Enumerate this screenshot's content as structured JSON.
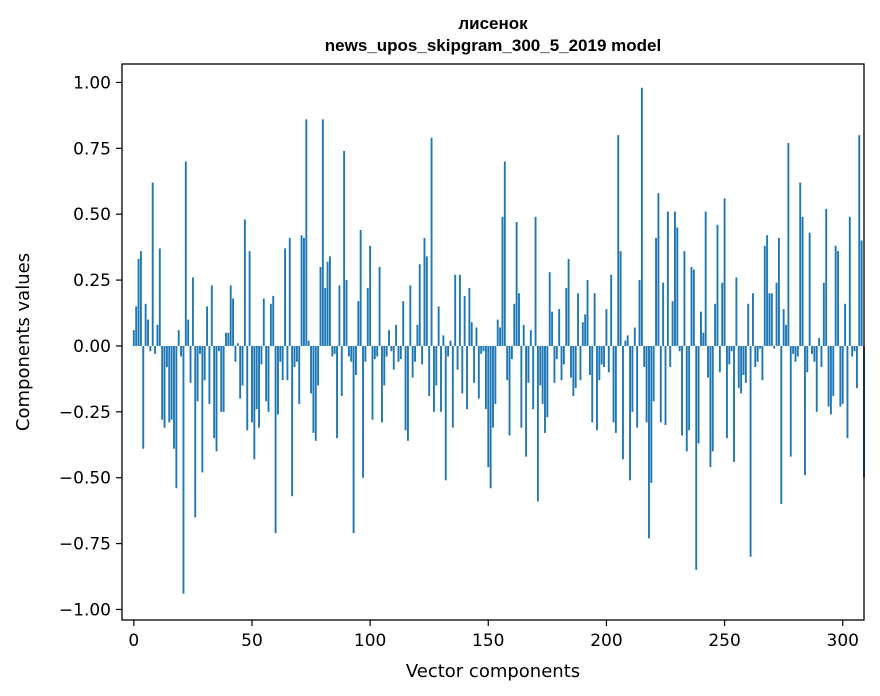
{
  "chart_data": {
    "type": "bar",
    "title": "лисенок",
    "subtitle": "news_upos_skipgram_300_5_2019 model",
    "xlabel": "Vector components",
    "ylabel": "Components values",
    "xlim": [
      -5,
      309
    ],
    "ylim": [
      -1.04,
      1.07
    ],
    "x_ticks": [
      0,
      50,
      100,
      150,
      200,
      250,
      300
    ],
    "x_tick_labels": [
      "0",
      "50",
      "100",
      "150",
      "200",
      "250",
      "300"
    ],
    "y_ticks": [
      1.0,
      0.75,
      0.5,
      0.25,
      0.0,
      -0.25,
      -0.5,
      -0.75,
      -1.0
    ],
    "y_tick_labels": [
      "1.00",
      "0.75",
      "0.50",
      "0.25",
      "0.00",
      "−0.25",
      "−0.50",
      "−0.75",
      "−1.00"
    ],
    "grid": false,
    "bar_color": "#1f77b4",
    "values": [
      0.06,
      0.15,
      0.33,
      0.36,
      -0.39,
      0.16,
      0.1,
      -0.02,
      0.62,
      -0.03,
      0.08,
      0.37,
      -0.28,
      -0.31,
      -0.08,
      -0.29,
      -0.28,
      -0.39,
      -0.54,
      0.06,
      -0.04,
      -0.94,
      0.7,
      0.1,
      -0.14,
      0.26,
      -0.65,
      -0.21,
      -0.03,
      -0.48,
      -0.13,
      0.15,
      -0.22,
      0.23,
      -0.35,
      -0.4,
      -0.02,
      -0.25,
      -0.25,
      0.05,
      0.05,
      0.23,
      0.18,
      -0.06,
      0.01,
      -0.2,
      -0.15,
      0.48,
      -0.32,
      0.36,
      -0.29,
      -0.43,
      -0.24,
      -0.31,
      -0.07,
      0.18,
      -0.21,
      -0.25,
      0.16,
      0.19,
      -0.71,
      -0.26,
      -0.06,
      -0.13,
      0.37,
      -0.13,
      0.41,
      -0.57,
      -0.08,
      -0.06,
      -0.22,
      0.42,
      0.41,
      0.86,
      0.02,
      -0.18,
      -0.33,
      -0.36,
      -0.15,
      0.3,
      0.86,
      0.22,
      0.32,
      0.34,
      -0.04,
      -0.03,
      -0.35,
      0.23,
      -0.19,
      0.74,
      0.25,
      -0.04,
      -0.06,
      -0.71,
      -0.11,
      0.17,
      0.44,
      -0.5,
      -0.06,
      0.22,
      0.38,
      -0.28,
      -0.05,
      -0.04,
      0.3,
      -0.29,
      -0.15,
      -0.04,
      0.06,
      -0.02,
      -0.09,
      0.08,
      -0.06,
      -0.05,
      0.17,
      -0.32,
      -0.36,
      0.23,
      -0.12,
      -0.06,
      0.08,
      0.31,
      -0.07,
      0.41,
      0.34,
      -0.19,
      0.79,
      -0.25,
      -0.15,
      0.15,
      -0.25,
      0.04,
      -0.51,
      -0.04,
      0.02,
      -0.31,
      0.27,
      -0.09,
      0.27,
      -0.18,
      0.19,
      -0.24,
      0.22,
      0.09,
      -0.14,
      0.07,
      -0.2,
      -0.03,
      -0.02,
      -0.24,
      -0.46,
      -0.54,
      -0.31,
      -0.22,
      0.1,
      0.07,
      0.49,
      0.7,
      -0.13,
      -0.34,
      -0.05,
      0.16,
      0.47,
      0.2,
      -0.31,
      0.08,
      -0.42,
      -0.14,
      0.06,
      -0.24,
      0.49,
      -0.59,
      -0.15,
      -0.22,
      -0.33,
      -0.27,
      0.28,
      0.13,
      -0.14,
      -0.05,
      0.14,
      -0.13,
      -0.07,
      0.22,
      0.33,
      -0.12,
      -0.19,
      -0.16,
      0.2,
      -0.13,
      0.09,
      0.12,
      0.25,
      -0.11,
      -0.29,
      0.2,
      -0.32,
      -0.13,
      -0.07,
      -0.08,
      0.14,
      -0.1,
      0.27,
      -0.29,
      -0.33,
      0.8,
      0.36,
      -0.43,
      0.02,
      0.04,
      -0.51,
      -0.25,
      0.07,
      -0.31,
      0.25,
      0.98,
      -0.08,
      -0.29,
      -0.73,
      -0.52,
      -0.21,
      0.41,
      0.58,
      -0.29,
      0.24,
      -0.3,
      0.51,
      -0.08,
      0.17,
      0.51,
      0.45,
      -0.02,
      -0.34,
      0.36,
      -0.4,
      -0.32,
      0.3,
      0.29,
      -0.85,
      -0.37,
      0.13,
      0.05,
      0.51,
      -0.12,
      -0.46,
      -0.4,
      0.16,
      0.46,
      -0.1,
      0.24,
      0.56,
      -0.35,
      -0.07,
      -0.02,
      -0.44,
      0.26,
      -0.16,
      -0.18,
      -0.11,
      -0.14,
      0.16,
      -0.8,
      0.2,
      -0.08,
      -0.06,
      -0.01,
      -0.13,
      0.38,
      0.42,
      0.2,
      0.2,
      -0.01,
      0.24,
      0.41,
      -0.6,
      0.14,
      0.08,
      0.77,
      -0.42,
      -0.03,
      -0.06,
      -0.04,
      0.62,
      0.49,
      -0.49,
      -0.1,
      0.43,
      -0.03,
      -0.06,
      -0.25,
      0.03,
      -0.08,
      0.24,
      0.52,
      -0.23,
      -0.26,
      -0.19,
      0.38,
      0.36,
      -0.23,
      -0.22,
      0.16,
      -0.35,
      0.49,
      -0.04,
      -0.02,
      -0.16,
      0.8,
      0.4,
      -0.5
    ]
  }
}
